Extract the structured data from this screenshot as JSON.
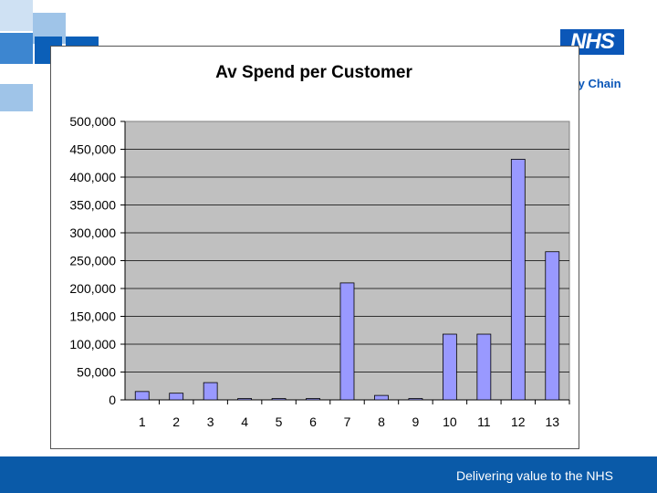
{
  "branding": {
    "logo_text": "NHS",
    "supply_text": "ly Chain",
    "footer_text": "Delivering value to the NHS",
    "primary_color": "#0a5aa8",
    "tile_colors": [
      "#cfe1f3",
      "#9fc4e8",
      "#3d86d0",
      "#0b5fb8"
    ]
  },
  "chart_data": {
    "type": "bar",
    "title": "Av Spend per Customer",
    "xlabel": "",
    "ylabel": "",
    "categories": [
      "1",
      "2",
      "3",
      "4",
      "5",
      "6",
      "7",
      "8",
      "9",
      "10",
      "11",
      "12",
      "13"
    ],
    "values": [
      15000,
      12000,
      31000,
      1500,
      1500,
      1500,
      210000,
      8000,
      2000,
      118000,
      118000,
      432000,
      266000
    ],
    "ylim": [
      0,
      500000
    ],
    "yticks": [
      "0",
      "50,000",
      "100,000",
      "150,000",
      "200,000",
      "250,000",
      "300,000",
      "350,000",
      "400,000",
      "450,000",
      "500,000"
    ],
    "grid": true,
    "legend": "none",
    "bar_color": "#9999ff",
    "plot_background": "#c0c0c0"
  }
}
